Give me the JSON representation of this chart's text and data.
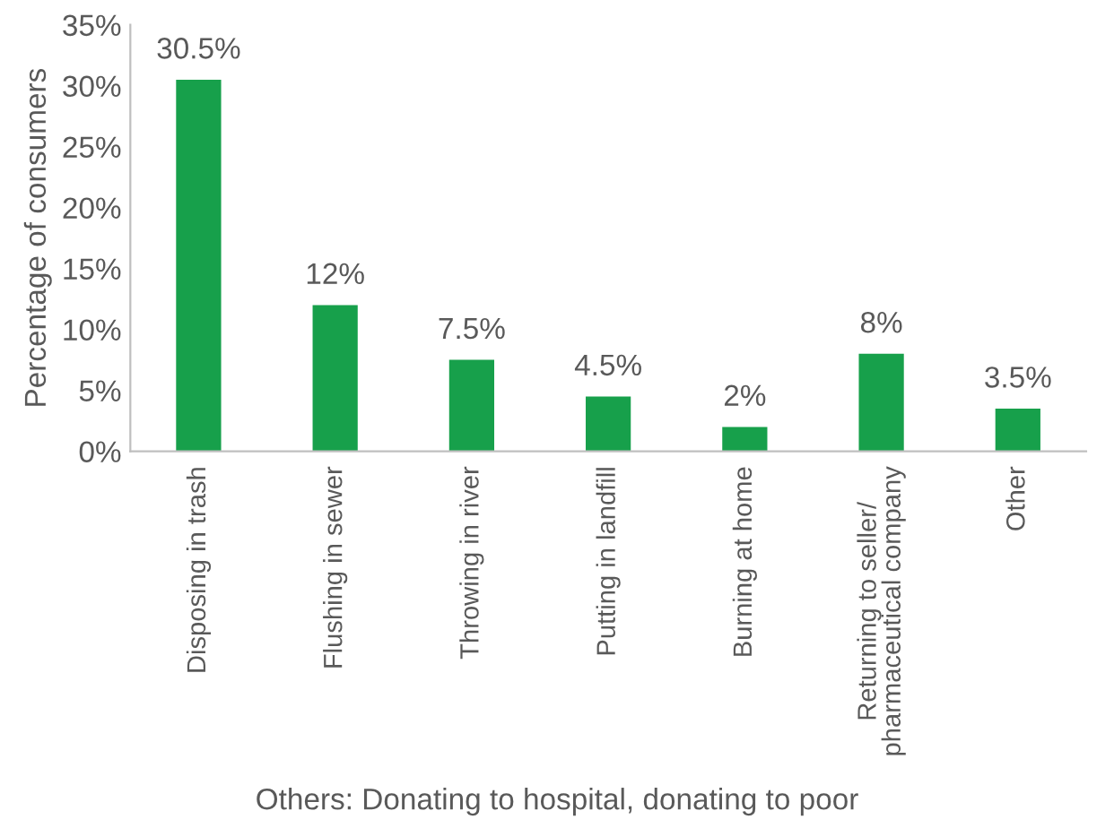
{
  "chart_data": {
    "type": "bar",
    "ylabel": "Percentage of consumers",
    "categories": [
      "Disposing in trash",
      "Flushing in sewer",
      "Throwing in river",
      "Putting in landfill",
      "Burning at home",
      "Returning to seller/\npharmaceutical company",
      "Other"
    ],
    "values": [
      30.5,
      12,
      7.5,
      4.5,
      2,
      8,
      3.5
    ],
    "value_labels": [
      "30.5%",
      "12%",
      "7.5%",
      "4.5%",
      "2%",
      "8%",
      "3.5%"
    ],
    "color": "#17a04b",
    "ylim": [
      0,
      35
    ],
    "yticks": [
      {
        "value": 0,
        "label": "0%"
      },
      {
        "value": 5,
        "label": "5%"
      },
      {
        "value": 10,
        "label": "10%"
      },
      {
        "value": 15,
        "label": "15%"
      },
      {
        "value": 20,
        "label": "20%"
      },
      {
        "value": 25,
        "label": "25%"
      },
      {
        "value": 30,
        "label": "30%"
      },
      {
        "value": 35,
        "label": "35%"
      }
    ],
    "grid": false,
    "legend": false,
    "annotations": [
      "Others: Donating to hospital, donating to poor"
    ]
  }
}
